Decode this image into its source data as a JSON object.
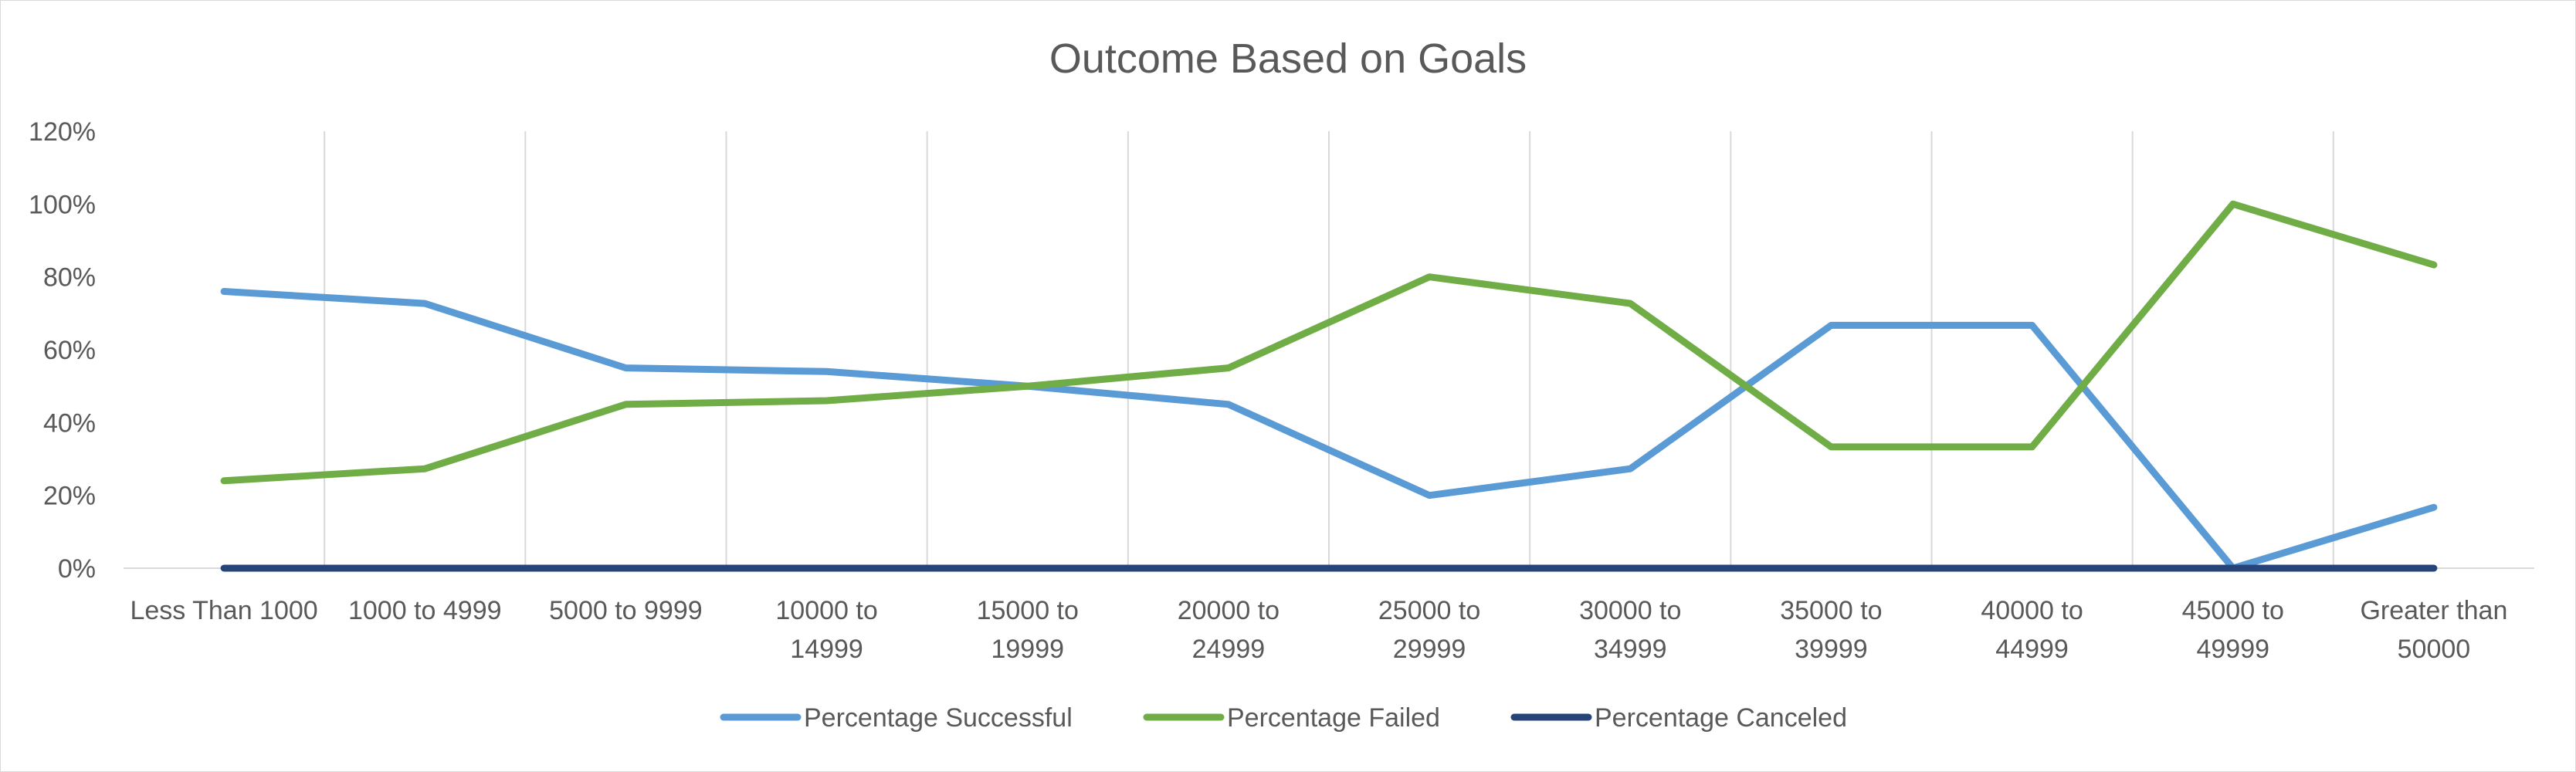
{
  "chart_data": {
    "type": "line",
    "title": "Outcome Based on Goals",
    "xlabel": "",
    "ylabel": "",
    "categories": [
      [
        "Less Than 1000"
      ],
      [
        "1000 to 4999"
      ],
      [
        "5000 to 9999"
      ],
      [
        "10000 to",
        "14999"
      ],
      [
        "15000 to",
        "19999"
      ],
      [
        "20000 to",
        "24999"
      ],
      [
        "25000 to",
        "29999"
      ],
      [
        "30000 to",
        "34999"
      ],
      [
        "35000 to",
        "39999"
      ],
      [
        "40000 to",
        "44999"
      ],
      [
        "45000 to",
        "49999"
      ],
      [
        "Greater than",
        "50000"
      ]
    ],
    "y_ticks": [
      "0%",
      "20%",
      "40%",
      "60%",
      "80%",
      "100%",
      "120%"
    ],
    "ylim": [
      0,
      1.2
    ],
    "grid": "vertical",
    "legend_position": "bottom",
    "series": [
      {
        "name": "Percentage Successful",
        "color": "#5b9bd5",
        "values": [
          0.76,
          0.727,
          0.55,
          0.54,
          0.5,
          0.45,
          0.2,
          0.273,
          0.667,
          0.667,
          0.0,
          0.167
        ]
      },
      {
        "name": "Percentage Failed",
        "color": "#70ad47",
        "values": [
          0.24,
          0.273,
          0.45,
          0.46,
          0.5,
          0.55,
          0.8,
          0.727,
          0.333,
          0.333,
          1.0,
          0.833
        ]
      },
      {
        "name": "Percentage Canceled",
        "color": "#264478",
        "values": [
          0,
          0,
          0,
          0,
          0,
          0,
          0,
          0,
          0,
          0,
          0,
          0
        ]
      }
    ]
  }
}
